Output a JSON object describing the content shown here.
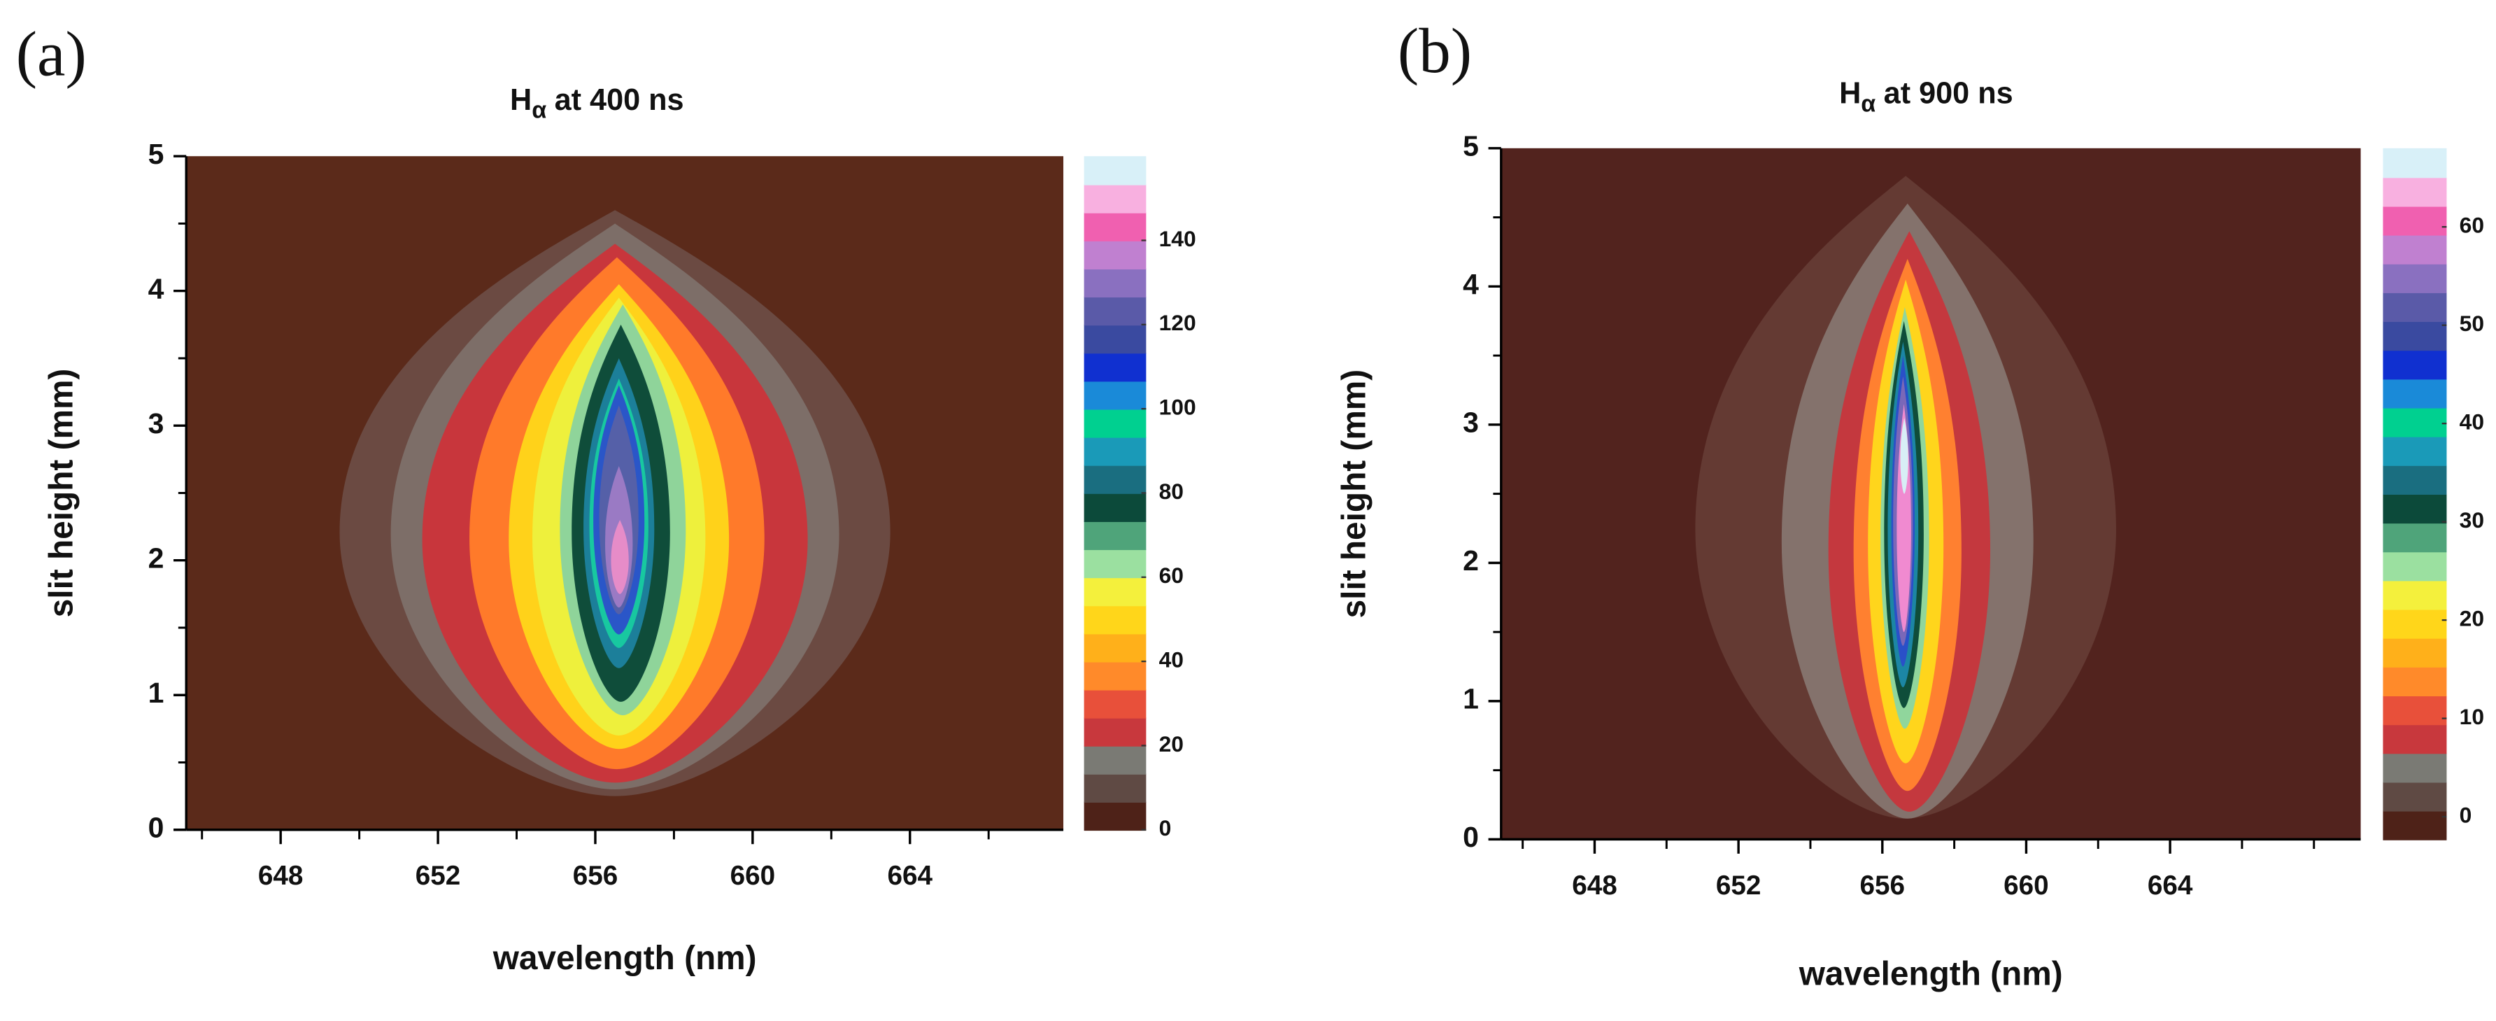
{
  "chart_data": [
    {
      "type": "contour",
      "panel_label": "(a)",
      "title_symbol": "H",
      "title_subscript": "α",
      "title": "at 400 ns",
      "x_label": "wavelength (nm)",
      "y_label": "slit height (mm)",
      "xlim": [
        645.6,
        667.9
      ],
      "xticks": [
        648,
        652,
        656,
        660,
        664
      ],
      "xticks_minor": [
        646,
        650,
        654,
        658,
        662,
        666
      ],
      "ylim": [
        0,
        5
      ],
      "yticks": [
        0,
        1,
        2,
        3,
        4,
        5
      ],
      "yticks_minor": [
        0.5,
        1.5,
        2.5,
        3.5,
        4.5
      ],
      "background": "#5b2a1a",
      "zlim": [
        0,
        160
      ],
      "zticks": [
        0,
        20,
        40,
        60,
        80,
        100,
        120,
        140
      ],
      "colorscale": [
        "#4e2218",
        "#5f4a44",
        "#7a7a74",
        "#c8383d",
        "#e8503a",
        "#ff8a2a",
        "#ffb01a",
        "#ffd61a",
        "#f4f03c",
        "#9be0a0",
        "#4fa47a",
        "#0c4a3a",
        "#1a6e80",
        "#1a9ab8",
        "#00d090",
        "#1a8ad8",
        "#1030d0",
        "#3a4aa0",
        "#5a5aa8",
        "#8a70c0",
        "#c080d0",
        "#f060b0",
        "#f8b0e0",
        "#d8f0f8"
      ],
      "contours": [
        {
          "level": 8,
          "color": "#6b4a42",
          "xmin": 649.5,
          "xmax": 663.5,
          "ymin": 0.25,
          "ymax": 4.6
        },
        {
          "level": 12,
          "color": "#7d6e68",
          "xmin": 650.8,
          "xmax": 662.2,
          "ymin": 0.3,
          "ymax": 4.5
        },
        {
          "level": 20,
          "color": "#c8363c",
          "xmin": 651.6,
          "xmax": 661.4,
          "ymin": 0.35,
          "ymax": 4.35
        },
        {
          "level": 30,
          "color": "#ff7a2a",
          "xmin": 652.8,
          "xmax": 660.3,
          "ymin": 0.45,
          "ymax": 4.25
        },
        {
          "level": 42,
          "color": "#ffd21a",
          "xmin": 653.8,
          "xmax": 659.4,
          "ymin": 0.6,
          "ymax": 4.05
        },
        {
          "level": 55,
          "color": "#eef03c",
          "xmin": 654.4,
          "xmax": 658.8,
          "ymin": 0.7,
          "ymax": 3.95
        },
        {
          "level": 65,
          "color": "#8fd49a",
          "xmin": 655.1,
          "xmax": 658.3,
          "ymin": 0.85,
          "ymax": 3.9
        },
        {
          "level": 75,
          "color": "#0f4d3a",
          "xmin": 655.4,
          "xmax": 657.9,
          "ymin": 0.95,
          "ymax": 3.75
        },
        {
          "level": 90,
          "color": "#1c7f9a",
          "xmin": 655.7,
          "xmax": 657.5,
          "ymin": 1.2,
          "ymax": 3.5
        },
        {
          "level": 100,
          "color": "#18c8a0",
          "xmin": 655.85,
          "xmax": 657.35,
          "ymin": 1.35,
          "ymax": 3.35
        },
        {
          "level": 110,
          "color": "#2a56c8",
          "xmin": 655.95,
          "xmax": 657.25,
          "ymin": 1.45,
          "ymax": 3.3
        },
        {
          "level": 122,
          "color": "#5560a8",
          "xmin": 656.1,
          "xmax": 657.1,
          "ymin": 1.6,
          "ymax": 3.15
        },
        {
          "level": 132,
          "color": "#9a7ac4",
          "xmin": 656.25,
          "xmax": 656.95,
          "ymin": 1.65,
          "ymax": 2.7
        },
        {
          "level": 140,
          "color": "#e68cc8",
          "xmin": 656.4,
          "xmax": 656.85,
          "ymin": 1.75,
          "ymax": 2.3
        }
      ]
    },
    {
      "type": "contour",
      "panel_label": "(b)",
      "title_symbol": "H",
      "title_subscript": "α",
      "title": "at 900 ns",
      "x_label": "wavelength (nm)",
      "y_label": "slit height (mm)",
      "xlim": [
        645.4,
        669.3
      ],
      "xticks": [
        648,
        652,
        656,
        660,
        664
      ],
      "xticks_minor": [
        646,
        650,
        654,
        658,
        662,
        666,
        668
      ],
      "ylim": [
        0,
        5
      ],
      "yticks": [
        0,
        1,
        2,
        3,
        4,
        5
      ],
      "yticks_minor": [
        0.5,
        1.5,
        2.5,
        3.5,
        4.5
      ],
      "background": "#52231e",
      "zlim": [
        -2.3,
        68
      ],
      "zticks": [
        0,
        10,
        20,
        30,
        40,
        50,
        60
      ],
      "colorscale": [
        "#4e2218",
        "#5f4a44",
        "#7a7a74",
        "#c8383d",
        "#e8503a",
        "#ff8a2a",
        "#ffb01a",
        "#ffd61a",
        "#f4f03c",
        "#9be0a0",
        "#4fa47a",
        "#0c4a3a",
        "#1a6e80",
        "#1a9ab8",
        "#00d090",
        "#1a8ad8",
        "#1030d0",
        "#3a4aa0",
        "#5a5aa8",
        "#8a70c0",
        "#c080d0",
        "#f060b0",
        "#f8b0e0",
        "#d8f0f8"
      ],
      "contours": [
        {
          "level": 4,
          "color": "#643a33",
          "xmin": 650.8,
          "xmax": 662.5,
          "ymin": 0.15,
          "ymax": 4.8
        },
        {
          "level": 6,
          "color": "#84726c",
          "xmin": 653.2,
          "xmax": 660.2,
          "ymin": 0.15,
          "ymax": 4.6
        },
        {
          "level": 8,
          "color": "#c4383e",
          "xmin": 654.5,
          "xmax": 659.0,
          "ymin": 0.2,
          "ymax": 4.4
        },
        {
          "level": 12,
          "color": "#ff8030",
          "xmin": 655.2,
          "xmax": 658.2,
          "ymin": 0.35,
          "ymax": 4.2
        },
        {
          "level": 18,
          "color": "#ffd51c",
          "xmin": 655.6,
          "xmax": 657.7,
          "ymin": 0.55,
          "ymax": 4.05
        },
        {
          "level": 25,
          "color": "#90d69c",
          "xmin": 655.95,
          "xmax": 657.3,
          "ymin": 0.8,
          "ymax": 3.85
        },
        {
          "level": 30,
          "color": "#0f4d3a",
          "xmin": 656.05,
          "xmax": 657.15,
          "ymin": 0.95,
          "ymax": 3.75
        },
        {
          "level": 38,
          "color": "#1c86a4",
          "xmin": 656.15,
          "xmax": 657.0,
          "ymin": 1.1,
          "ymax": 3.6
        },
        {
          "level": 45,
          "color": "#2a50c8",
          "xmin": 656.25,
          "xmax": 656.9,
          "ymin": 1.25,
          "ymax": 3.5
        },
        {
          "level": 52,
          "color": "#7a68b8",
          "xmin": 656.3,
          "xmax": 656.85,
          "ymin": 1.4,
          "ymax": 3.35
        },
        {
          "level": 60,
          "color": "#f08ad0",
          "xmin": 656.4,
          "xmax": 656.8,
          "ymin": 1.5,
          "ymax": 3.15
        },
        {
          "level": 65,
          "color": "#d8eef6",
          "xmin": 656.5,
          "xmax": 656.72,
          "ymin": 2.5,
          "ymax": 3.05
        }
      ]
    }
  ]
}
